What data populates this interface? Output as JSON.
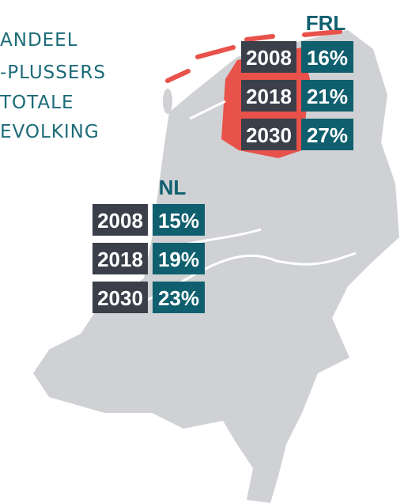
{
  "title_lines": [
    "ANDEEL",
    "-PLUSSERS",
    "TOTALE",
    "EVOLKING"
  ],
  "regions": [
    {
      "name": "FRL",
      "rows": [
        {
          "year": "2008",
          "share": "16%"
        },
        {
          "year": "2018",
          "share": "21%"
        },
        {
          "year": "2030",
          "share": "27%"
        }
      ]
    },
    {
      "name": "NL",
      "rows": [
        {
          "year": "2008",
          "share": "15%"
        },
        {
          "year": "2018",
          "share": "19%"
        },
        {
          "year": "2030",
          "share": "23%"
        }
      ]
    }
  ]
}
